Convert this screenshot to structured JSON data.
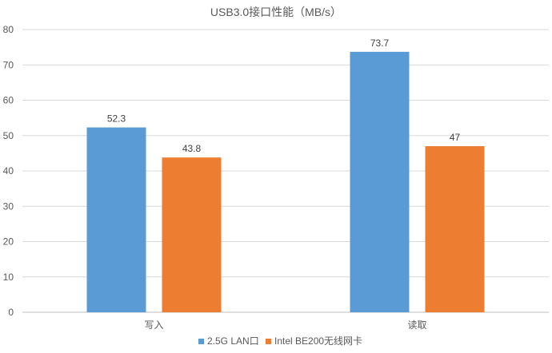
{
  "chart_data": {
    "type": "bar",
    "title": "USB3.0接口性能（MB/s）",
    "categories": [
      "写入",
      "读取"
    ],
    "series": [
      {
        "name": "2.5G LAN口",
        "values": [
          52.3,
          73.7
        ],
        "color": "#5b9bd5"
      },
      {
        "name": "Intel BE200无线网卡",
        "values": [
          43.8,
          47
        ],
        "color": "#ed7d31"
      }
    ],
    "ylim": [
      0,
      80
    ],
    "yticks": [
      0,
      10,
      20,
      30,
      40,
      50,
      60,
      70,
      80
    ],
    "grid": true,
    "legend": "bottom",
    "data_labels": true
  }
}
